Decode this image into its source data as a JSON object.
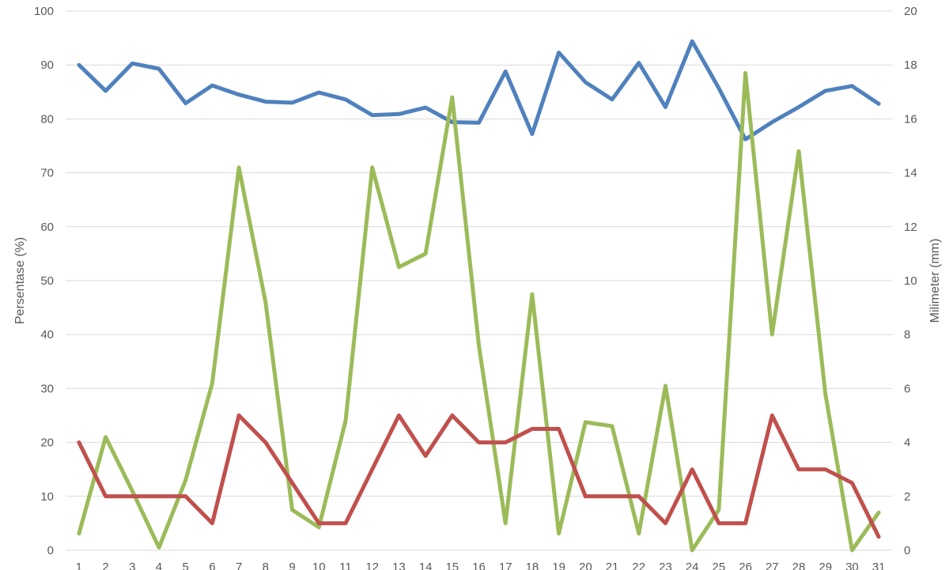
{
  "chart_data": {
    "type": "line",
    "title": "",
    "x": [
      "1",
      "2",
      "3",
      "4",
      "5",
      "6",
      "7",
      "8",
      "9",
      "10",
      "11",
      "12",
      "13",
      "14",
      "15",
      "16",
      "17",
      "18",
      "19",
      "20",
      "21",
      "22",
      "23",
      "24",
      "25",
      "26",
      "27",
      "28",
      "29",
      "30",
      "31"
    ],
    "y_left": {
      "label": "Persentase (%)",
      "ylim": [
        0,
        100
      ],
      "ticks": [
        0,
        10,
        20,
        30,
        40,
        50,
        60,
        70,
        80,
        90,
        100
      ]
    },
    "y_right": {
      "label": "Milimeter (mm)",
      "ylim": [
        0,
        20
      ],
      "ticks": [
        0,
        2,
        4,
        6,
        8,
        10,
        12,
        14,
        16,
        18,
        20
      ]
    },
    "grid": true,
    "series": [
      {
        "axis": "left",
        "color": "#4f81bd",
        "values": [
          90,
          85.2,
          90.3,
          89.3,
          82.9,
          86.2,
          84.5,
          83.2,
          83,
          84.9,
          83.6,
          80.7,
          80.9,
          82.1,
          79.4,
          79.3,
          88.8,
          77.2,
          92.3,
          86.8,
          83.6,
          90.4,
          82.2,
          94.4,
          85.7,
          76.2,
          79.4,
          82.2,
          85.2,
          86.1,
          82.8
        ]
      },
      {
        "axis": "right",
        "color": "#9bbb59",
        "values": [
          0.62,
          4.2,
          2.2,
          0.1,
          2.6,
          6.2,
          14.2,
          9.2,
          1.5,
          0.85,
          4.8,
          14.2,
          10.5,
          11,
          16.8,
          7.6,
          1,
          9.5,
          0.62,
          4.75,
          4.6,
          0.62,
          6.1,
          0,
          1.5,
          17.7,
          8,
          14.8,
          5.8,
          0,
          1.4
        ]
      },
      {
        "axis": "left",
        "color": "#c0504d",
        "values": [
          20,
          10,
          10,
          10,
          10,
          5,
          25,
          20,
          12.5,
          5,
          5,
          15,
          25,
          17.5,
          25,
          20,
          20,
          22.5,
          22.5,
          10,
          10,
          10,
          5,
          15,
          5,
          5,
          25,
          15,
          15,
          12.5,
          2.5
        ]
      }
    ]
  }
}
